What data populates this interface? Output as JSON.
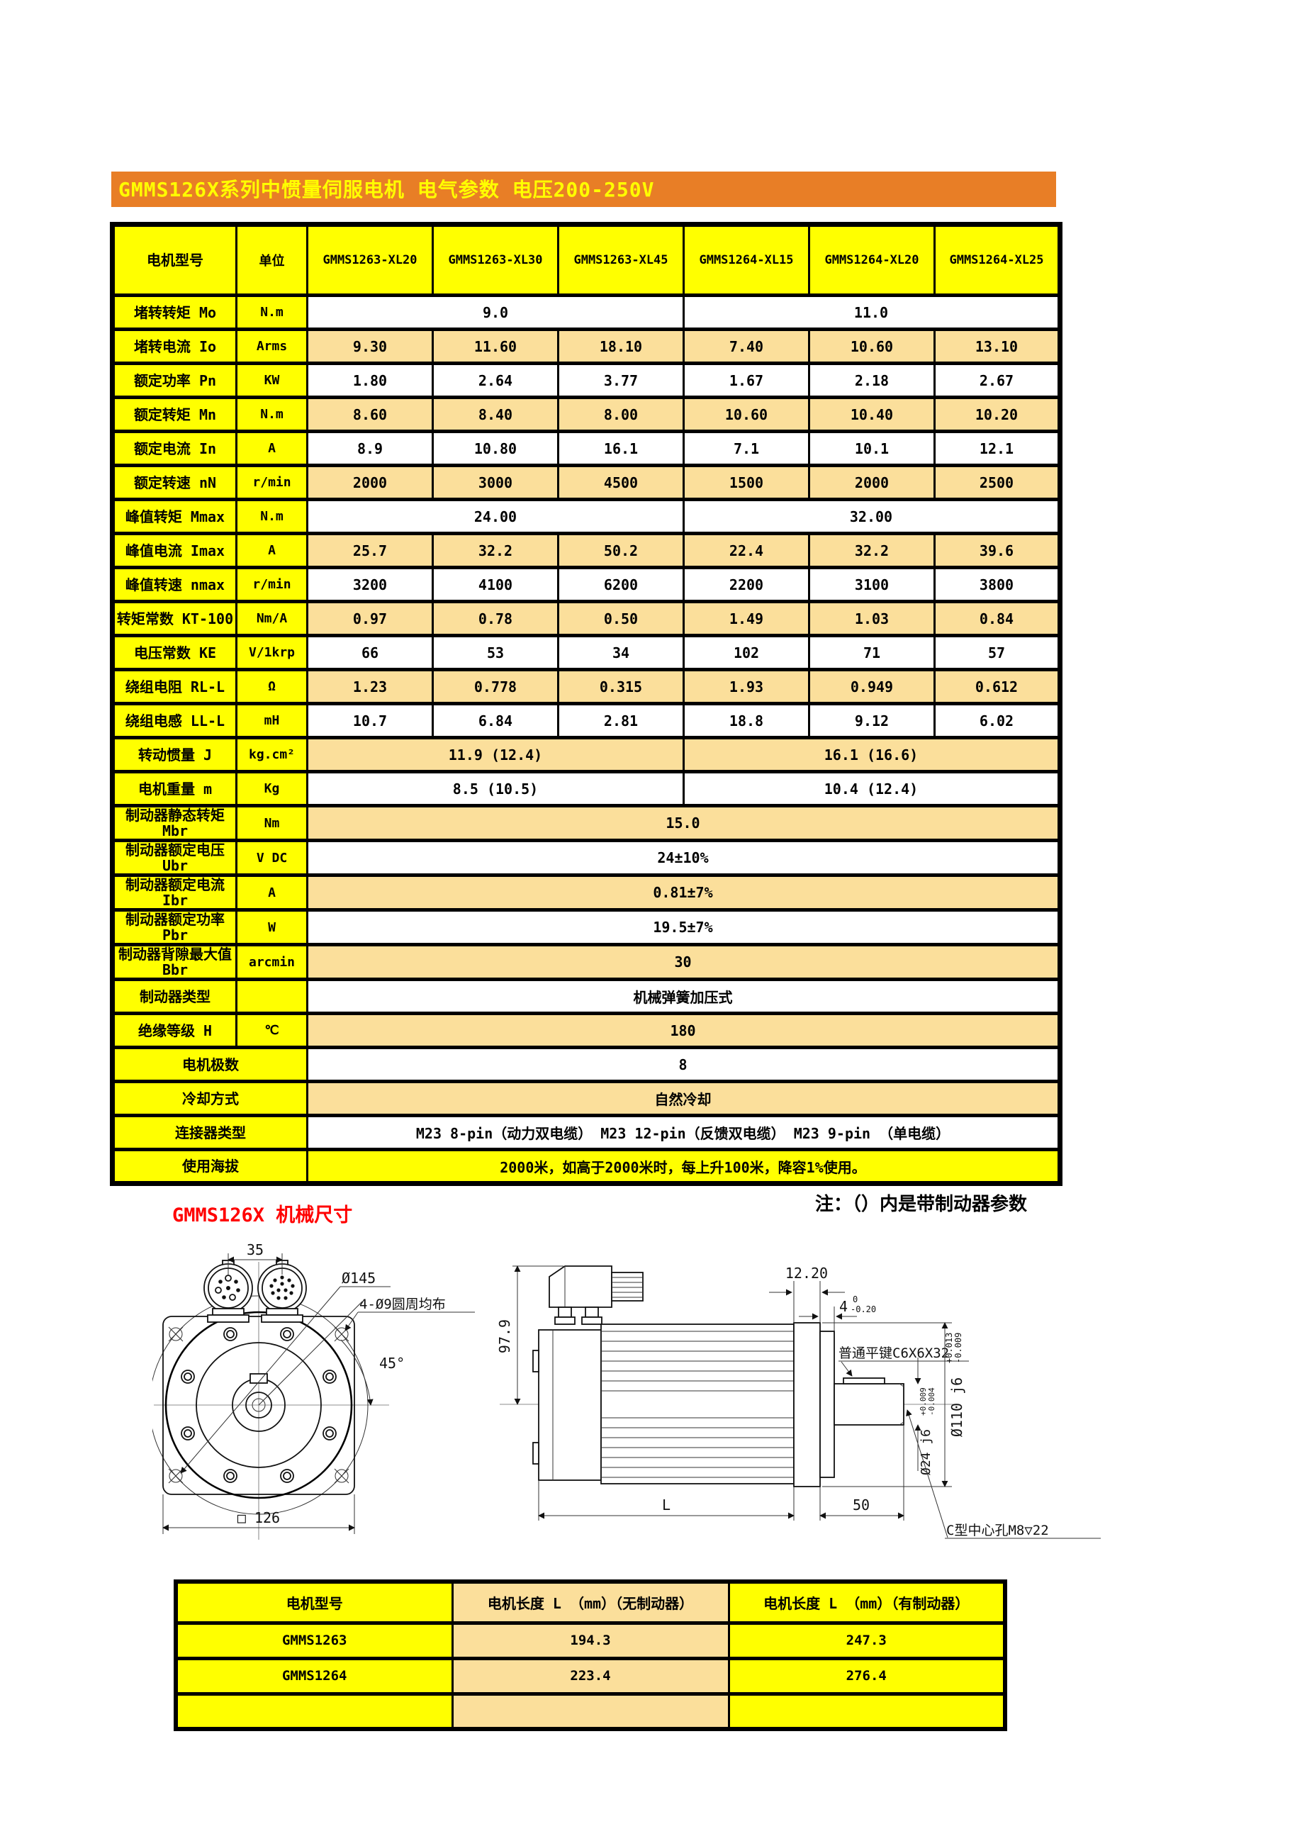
{
  "page": {
    "title_banner": "GMMS126X系列中惯量伺服电机 电气参数 电压200-250V",
    "note": "注：（）内是带制动器参数",
    "mech_title": "GMMS126X 机械尺寸"
  },
  "colors": {
    "banner_bg": "#E87E26",
    "banner_text": "#FFFF00",
    "yellow": "#FFFF00",
    "tan": "#FBDF9B",
    "mech_title_red": "#FF0000"
  },
  "spec_table": {
    "header": {
      "col_model": "电机型号",
      "col_unit": "单位",
      "models": [
        "GMMS1263-XL20",
        "GMMS1263-XL30",
        "GMMS1263-XL45",
        "GMMS1264-XL15",
        "GMMS1264-XL20",
        "GMMS1264-XL25"
      ]
    },
    "rows": [
      {
        "label": "堵转转矩 Mo",
        "unit": "N.m",
        "bg": "white",
        "cells": [
          {
            "t": "9.0",
            "span": 3
          },
          {
            "t": "11.0",
            "span": 3
          }
        ]
      },
      {
        "label": "堵转电流 Io",
        "unit": "Arms",
        "bg": "tan",
        "cells": [
          {
            "t": "9.30"
          },
          {
            "t": "11.60"
          },
          {
            "t": "18.10"
          },
          {
            "t": "7.40"
          },
          {
            "t": "10.60"
          },
          {
            "t": "13.10"
          }
        ]
      },
      {
        "label": "额定功率 Pn",
        "unit": "KW",
        "bg": "white",
        "cells": [
          {
            "t": "1.80"
          },
          {
            "t": "2.64"
          },
          {
            "t": "3.77"
          },
          {
            "t": "1.67"
          },
          {
            "t": "2.18"
          },
          {
            "t": "2.67"
          }
        ]
      },
      {
        "label": "额定转矩 Mn",
        "unit": "N.m",
        "bg": "tan",
        "cells": [
          {
            "t": "8.60"
          },
          {
            "t": "8.40"
          },
          {
            "t": "8.00"
          },
          {
            "t": "10.60"
          },
          {
            "t": "10.40"
          },
          {
            "t": "10.20"
          }
        ]
      },
      {
        "label": "额定电流 In",
        "unit": "A",
        "bg": "white",
        "cells": [
          {
            "t": "8.9"
          },
          {
            "t": "10.80"
          },
          {
            "t": "16.1"
          },
          {
            "t": "7.1"
          },
          {
            "t": "10.1"
          },
          {
            "t": "12.1"
          }
        ]
      },
      {
        "label": "额定转速 nN",
        "unit": "r/min",
        "bg": "tan",
        "cells": [
          {
            "t": "2000"
          },
          {
            "t": "3000"
          },
          {
            "t": "4500"
          },
          {
            "t": "1500"
          },
          {
            "t": "2000"
          },
          {
            "t": "2500"
          }
        ]
      },
      {
        "label": "峰值转矩 Mmax",
        "unit": "N.m",
        "bg": "white",
        "cells": [
          {
            "t": "24.00",
            "span": 3
          },
          {
            "t": "32.00",
            "span": 3
          }
        ]
      },
      {
        "label": "峰值电流 Imax",
        "unit": "A",
        "bg": "tan",
        "cells": [
          {
            "t": "25.7"
          },
          {
            "t": "32.2"
          },
          {
            "t": "50.2"
          },
          {
            "t": "22.4"
          },
          {
            "t": "32.2"
          },
          {
            "t": "39.6"
          }
        ]
      },
      {
        "label": "峰值转速 nmax",
        "unit": "r/min",
        "bg": "white",
        "cells": [
          {
            "t": "3200"
          },
          {
            "t": "4100"
          },
          {
            "t": "6200"
          },
          {
            "t": "2200"
          },
          {
            "t": "3100"
          },
          {
            "t": "3800"
          }
        ]
      },
      {
        "label": "转矩常数 KT-100",
        "unit": "Nm/A",
        "bg": "tan",
        "cells": [
          {
            "t": "0.97"
          },
          {
            "t": "0.78"
          },
          {
            "t": "0.50"
          },
          {
            "t": "1.49"
          },
          {
            "t": "1.03"
          },
          {
            "t": "0.84"
          }
        ]
      },
      {
        "label": "电压常数 KE",
        "unit": "V/1krp",
        "bg": "white",
        "cells": [
          {
            "t": "66"
          },
          {
            "t": "53"
          },
          {
            "t": "34"
          },
          {
            "t": "102"
          },
          {
            "t": "71"
          },
          {
            "t": "57"
          }
        ]
      },
      {
        "label": "绕组电阻 RL-L",
        "unit": "Ω",
        "bg": "tan",
        "cells": [
          {
            "t": "1.23"
          },
          {
            "t": "0.778"
          },
          {
            "t": "0.315"
          },
          {
            "t": "1.93"
          },
          {
            "t": "0.949"
          },
          {
            "t": "0.612"
          }
        ]
      },
      {
        "label": "绕组电感 LL-L",
        "unit": "mH",
        "bg": "white",
        "cells": [
          {
            "t": "10.7"
          },
          {
            "t": "6.84"
          },
          {
            "t": "2.81"
          },
          {
            "t": "18.8"
          },
          {
            "t": "9.12"
          },
          {
            "t": "6.02"
          }
        ]
      },
      {
        "label": "转动惯量 J",
        "unit": "kg.cm²",
        "bg": "tan",
        "cells": [
          {
            "t": "11.9 (12.4)",
            "span": 3
          },
          {
            "t": "16.1 (16.6)",
            "span": 3
          }
        ]
      },
      {
        "label": "电机重量 m",
        "unit": "Kg",
        "bg": "white",
        "cells": [
          {
            "t": "8.5 (10.5)",
            "span": 3
          },
          {
            "t": "10.4 (12.4)",
            "span": 3
          }
        ]
      },
      {
        "label": "制动器静态转矩\nMbr",
        "unit": "Nm",
        "bg": "tan",
        "cells": [
          {
            "t": "15.0",
            "span": 6
          }
        ]
      },
      {
        "label": "制动器额定电压\nUbr",
        "unit": "V DC",
        "bg": "white",
        "cells": [
          {
            "t": "24±10%",
            "span": 6
          }
        ]
      },
      {
        "label": "制动器额定电流\nIbr",
        "unit": "A",
        "bg": "tan",
        "cells": [
          {
            "t": "0.81±7%",
            "span": 6
          }
        ]
      },
      {
        "label": "制动器额定功率\nPbr",
        "unit": "W",
        "bg": "white",
        "cells": [
          {
            "t": "19.5±7%",
            "span": 6
          }
        ]
      },
      {
        "label": "制动器背隙最大值\nBbr",
        "unit": "arcmin",
        "bg": "tan",
        "cells": [
          {
            "t": "30",
            "span": 6
          }
        ]
      },
      {
        "label": "制动器类型",
        "unit": "",
        "bg": "white",
        "cells": [
          {
            "t": "机械弹簧加压式",
            "span": 6
          }
        ]
      },
      {
        "label": "绝缘等级 H",
        "unit": "℃",
        "bg": "tan",
        "cells": [
          {
            "t": "180",
            "span": 6
          }
        ]
      },
      {
        "label": "电机极数",
        "unit": null,
        "bg": "white",
        "cells": [
          {
            "t": "8",
            "span": 6
          }
        ]
      },
      {
        "label": "冷却方式",
        "unit": null,
        "bg": "tan",
        "cells": [
          {
            "t": "自然冷却",
            "span": 6
          }
        ]
      },
      {
        "label": "连接器类型",
        "unit": null,
        "bg": "white",
        "cells": [
          {
            "t": "M23 8-pin（动力双电缆） M23 12-pin（反馈双电缆） M23 9-pin （单电缆）",
            "span": 6
          }
        ]
      },
      {
        "label": "使用海拔",
        "unit": null,
        "bg": "yellow",
        "cells": [
          {
            "t": "2000米，如高于2000米时，每上升100米，降容1%使用。",
            "span": 6
          }
        ]
      }
    ]
  },
  "front_view": {
    "dim_top": "35",
    "dia_bolt_circle": "Ø145",
    "holes_note": "4-Ø9圆周均布",
    "angle": "45°",
    "dim_square": "□ 126"
  },
  "side_view": {
    "dim_height": "97.9",
    "dim_flange_width": "12.20",
    "dim_pilot": "4",
    "pilot_tol_upper": "0",
    "pilot_tol_lower": "-0.20",
    "key_note": "普通平键C6X6X32",
    "pilot_dia": "Ø110 j6",
    "pilot_dia_tol_upper": "+0.013",
    "pilot_dia_tol_lower": "-0.009",
    "shaft_dia": "Ø24 j6",
    "shaft_dia_tol_upper": "+0.009",
    "shaft_dia_tol_lower": "-0.004",
    "dim_length": "L",
    "dim_shaft_len": "50",
    "center_hole_note": "C型中心孔M8▽22"
  },
  "length_table": {
    "headers": [
      "电机型号",
      "电机长度 L （mm）（无制动器）",
      "电机长度 L （mm）（有制动器）"
    ],
    "rows": [
      [
        "GMMS1263",
        "194.3",
        "247.3"
      ],
      [
        "GMMS1264",
        "223.4",
        "276.4"
      ],
      [
        "",
        "",
        ""
      ]
    ]
  }
}
